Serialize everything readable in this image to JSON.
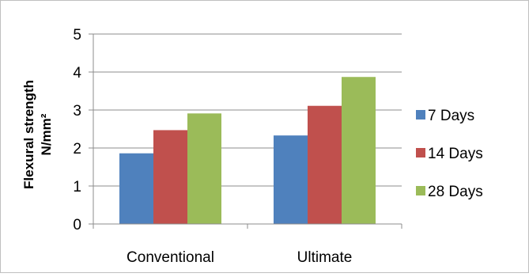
{
  "chart_data": {
    "type": "bar",
    "title": "",
    "xlabel": "",
    "ylabel_line1": "Flexural strength",
    "ylabel_line2": "N/mm²",
    "categories": [
      "Conventional",
      "Ultimate"
    ],
    "series": [
      {
        "name": "7 Days",
        "values": [
          1.86,
          2.33
        ],
        "color": "#4F81BD"
      },
      {
        "name": "14 Days",
        "values": [
          2.47,
          3.11
        ],
        "color": "#C0504D"
      },
      {
        "name": "28 Days",
        "values": [
          2.91,
          3.87
        ],
        "color": "#9BBB59"
      }
    ],
    "ylim": [
      0,
      5
    ],
    "yticks": [
      "0",
      "1",
      "2",
      "3",
      "4",
      "5"
    ],
    "grid": true,
    "legend_position": "right"
  }
}
